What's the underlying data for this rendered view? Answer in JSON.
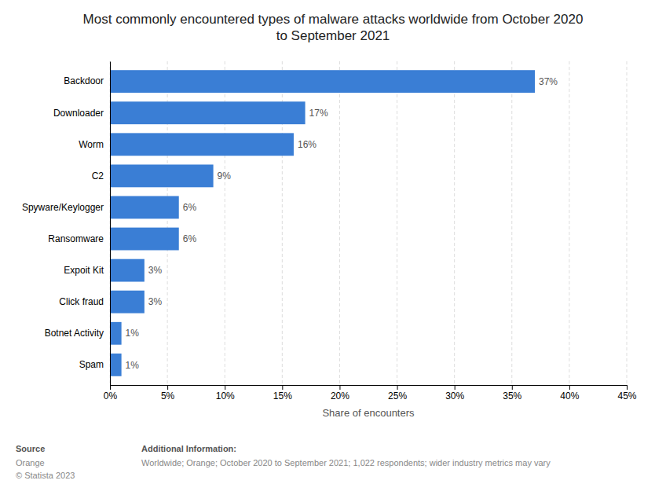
{
  "chart_data": {
    "type": "bar",
    "orientation": "horizontal",
    "title": "Most commonly encountered types of malware attacks worldwide from October 2020\nto September 2021",
    "categories": [
      "Spam",
      "Botnet Activity",
      "Click fraud",
      "Expoit Kit",
      "Ransomware",
      "Spyware/Keylogger",
      "C2",
      "Worm",
      "Downloader",
      "Backdoor"
    ],
    "values": [
      1,
      1,
      3,
      3,
      6,
      6,
      9,
      16,
      17,
      37
    ],
    "value_labels": [
      "1%",
      "1%",
      "3%",
      "3%",
      "6%",
      "6%",
      "9%",
      "16%",
      "17%",
      "37%"
    ],
    "data_labels": true,
    "color": "#3a7ed5",
    "xlabel": "Share of encounters",
    "xlim": [
      0,
      45
    ],
    "xticks": [
      {
        "value": 0,
        "label": "0%"
      },
      {
        "value": 5,
        "label": "5%"
      },
      {
        "value": 10,
        "label": "10%"
      },
      {
        "value": 15,
        "label": "15%"
      },
      {
        "value": 20,
        "label": "20%"
      },
      {
        "value": 25,
        "label": "25%"
      },
      {
        "value": 30,
        "label": "30%"
      },
      {
        "value": 35,
        "label": "35%"
      },
      {
        "value": 40,
        "label": "40%"
      },
      {
        "value": 45,
        "label": "45%"
      }
    ],
    "grid": true,
    "annotations": [
      "Source",
      "Orange\n© Statista 2023",
      "Additional Information:",
      "Worldwide; Orange; October 2020 to September 2021; 1,022 respondents; wider industry metrics may vary"
    ]
  }
}
